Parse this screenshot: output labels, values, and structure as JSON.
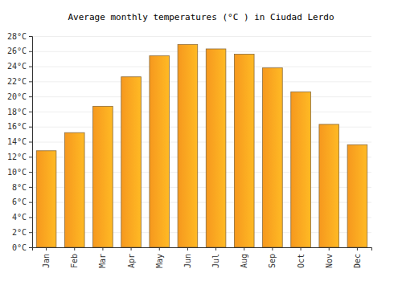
{
  "chart_data": {
    "type": "bar",
    "title": "Average monthly temperatures (°C ) in Ciudad Lerdo",
    "categories": [
      "Jan",
      "Feb",
      "Mar",
      "Apr",
      "May",
      "Jun",
      "Jul",
      "Aug",
      "Sep",
      "Oct",
      "Nov",
      "Dec"
    ],
    "values": [
      12.8,
      15.2,
      18.7,
      22.6,
      25.4,
      26.9,
      26.3,
      25.6,
      23.8,
      20.6,
      16.3,
      13.6
    ],
    "color": "#ff9e1f",
    "ylim": [
      0,
      28
    ],
    "yticks": [
      {
        "value": 0,
        "label": "0°C"
      },
      {
        "value": 2,
        "label": "2°C"
      },
      {
        "value": 4,
        "label": "4°C"
      },
      {
        "value": 6,
        "label": "6°C"
      },
      {
        "value": 8,
        "label": "8°C"
      },
      {
        "value": 10,
        "label": "10°C"
      },
      {
        "value": 12,
        "label": "12°C"
      },
      {
        "value": 14,
        "label": "14°C"
      },
      {
        "value": 16,
        "label": "16°C"
      },
      {
        "value": 18,
        "label": "18°C"
      },
      {
        "value": 20,
        "label": "20°C"
      },
      {
        "value": 22,
        "label": "22°C"
      },
      {
        "value": 24,
        "label": "24°C"
      },
      {
        "value": 26,
        "label": "26°C"
      },
      {
        "value": 28,
        "label": "28°C"
      }
    ],
    "grid": true
  }
}
